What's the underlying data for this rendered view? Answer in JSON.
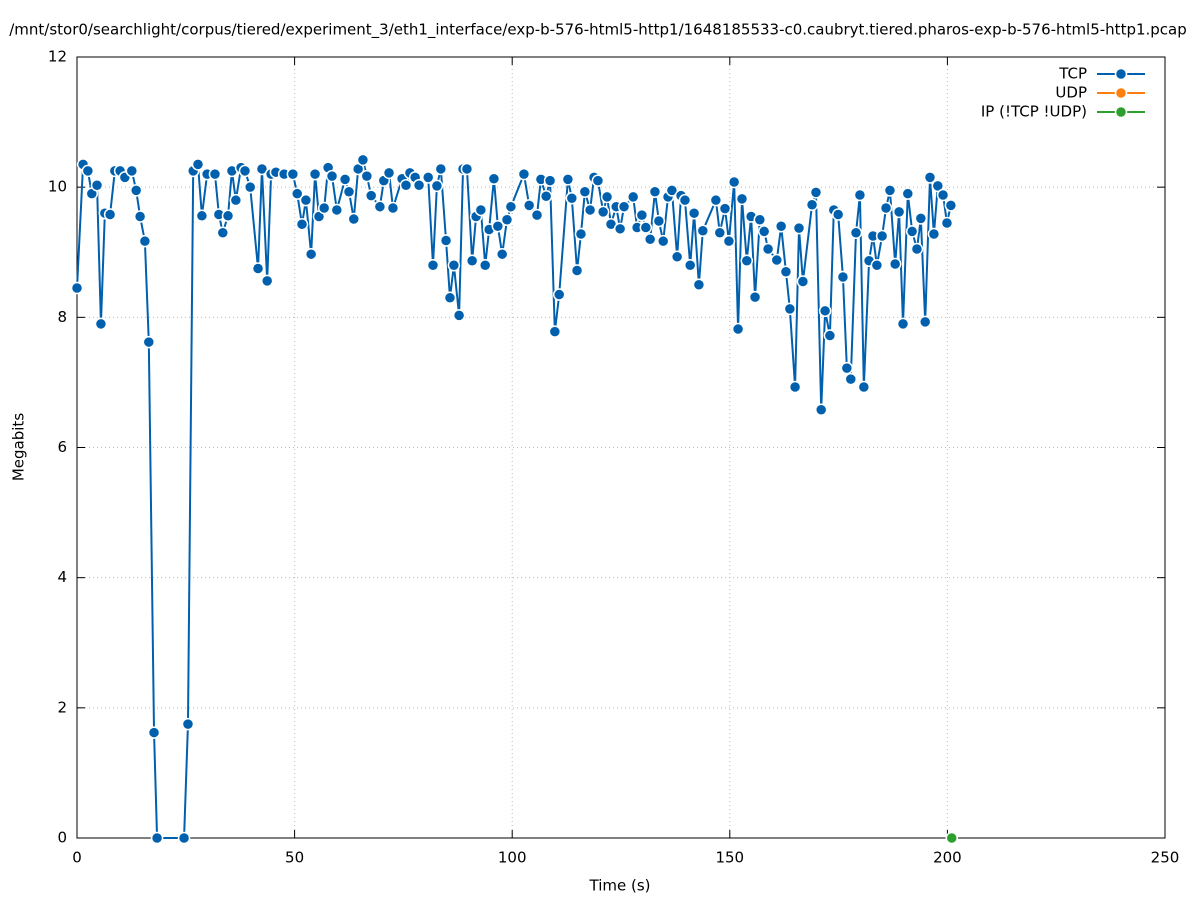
{
  "chart_data": {
    "type": "line",
    "title": "/mnt/stor0/searchlight/corpus/tiered/experiment_3/eth1_interface/exp-b-576-html5-http1/1648185533-c0.caubryt.tiered.pharos-exp-b-576-html5-http1.pcap",
    "xlabel": "Time (s)",
    "ylabel": "Megabits",
    "xlim": [
      0,
      250
    ],
    "xticks": [
      0,
      50,
      100,
      150,
      200,
      250
    ],
    "ylim": [
      0,
      12
    ],
    "yticks": [
      0,
      2,
      4,
      6,
      8,
      10,
      12
    ],
    "grid": true,
    "legend": "top-right",
    "series": [
      {
        "name": "TCP",
        "color": "#0060ad",
        "x": [
          0,
          1.4,
          2.5,
          3.4,
          4.6,
          5.5,
          6.4,
          7.6,
          8.7,
          9.9,
          11.0,
          12.6,
          13.6,
          14.5,
          15.6,
          16.5,
          17.7,
          18.4,
          24.6,
          25.5,
          26.7,
          27.8,
          28.7,
          29.9,
          31.7,
          32.6,
          33.5,
          34.7,
          35.6,
          36.5,
          37.7,
          38.6,
          39.8,
          41.6,
          42.5,
          43.7,
          44.6,
          45.7,
          47.6,
          49.6,
          50.6,
          51.7,
          52.6,
          53.8,
          54.7,
          55.6,
          56.8,
          57.7,
          58.6,
          59.7,
          61.6,
          62.5,
          63.6,
          64.6,
          65.7,
          66.6,
          67.6,
          69.6,
          70.5,
          71.7,
          72.6,
          74.7,
          75.6,
          76.5,
          77.7,
          78.6,
          80.7,
          81.8,
          82.7,
          83.6,
          84.8,
          85.7,
          86.6,
          87.8,
          88.7,
          89.6,
          90.8,
          91.7,
          92.8,
          93.8,
          94.7,
          95.8,
          96.7,
          97.7,
          98.8,
          99.7,
          102.7,
          103.9,
          105.7,
          106.6,
          107.8,
          108.7,
          109.8,
          110.8,
          112.8,
          113.7,
          114.9,
          115.8,
          116.7,
          117.9,
          118.8,
          119.7,
          120.9,
          121.8,
          122.7,
          123.9,
          124.8,
          125.7,
          127.8,
          128.7,
          129.8,
          130.7,
          131.7,
          132.8,
          133.7,
          134.7,
          135.8,
          136.7,
          137.9,
          138.8,
          139.7,
          140.9,
          141.8,
          142.9,
          143.8,
          146.8,
          147.7,
          148.9,
          149.8,
          151.0,
          151.9,
          152.8,
          153.9,
          154.9,
          155.8,
          156.9,
          157.9,
          158.8,
          160.8,
          161.8,
          162.9,
          163.8,
          165.0,
          165.9,
          166.8,
          168.9,
          169.8,
          171.0,
          171.9,
          173.0,
          173.9,
          174.9,
          176.0,
          176.9,
          177.8,
          179.0,
          179.9,
          180.8,
          182.0,
          182.9,
          183.8,
          185.0,
          185.9,
          186.8,
          188.0,
          188.9,
          189.8,
          190.9,
          191.9,
          193.0,
          193.9,
          194.9,
          196.0,
          196.9,
          197.8,
          199.0,
          199.9,
          200.8
        ],
        "values": [
          8.45,
          10.35,
          10.25,
          9.9,
          10.03,
          7.9,
          9.6,
          9.58,
          10.25,
          10.25,
          10.15,
          10.25,
          9.95,
          9.55,
          9.17,
          7.62,
          1.62,
          0,
          0,
          1.75,
          10.25,
          10.35,
          9.56,
          10.2,
          10.2,
          9.58,
          9.3,
          9.56,
          10.25,
          9.8,
          10.3,
          10.25,
          10.0,
          8.75,
          10.28,
          8.56,
          10.2,
          10.23,
          10.2,
          10.2,
          9.9,
          9.43,
          9.8,
          8.97,
          10.2,
          9.55,
          9.68,
          10.3,
          10.17,
          9.65,
          10.12,
          9.93,
          9.51,
          10.28,
          10.42,
          10.17,
          9.87,
          9.7,
          10.1,
          10.22,
          9.68,
          10.13,
          10.03,
          10.22,
          10.15,
          10.03,
          10.15,
          8.8,
          10.02,
          10.28,
          9.18,
          8.3,
          8.8,
          8.03,
          10.28,
          10.28,
          8.87,
          9.55,
          9.65,
          8.8,
          9.35,
          10.13,
          9.4,
          8.97,
          9.5,
          9.7,
          10.2,
          9.72,
          9.57,
          10.12,
          9.86,
          10.1,
          7.78,
          8.35,
          10.12,
          9.83,
          8.72,
          9.28,
          9.93,
          9.65,
          10.15,
          10.1,
          9.62,
          9.85,
          9.43,
          9.7,
          9.36,
          9.7,
          9.85,
          9.38,
          9.57,
          9.38,
          9.2,
          9.93,
          9.48,
          9.17,
          9.85,
          9.95,
          8.93,
          9.87,
          9.8,
          8.8,
          9.6,
          8.5,
          9.33,
          9.8,
          9.3,
          9.67,
          9.17,
          10.08,
          7.82,
          9.82,
          8.87,
          9.55,
          8.31,
          9.5,
          9.32,
          9.05,
          8.88,
          9.4,
          8.7,
          8.13,
          6.93,
          9.37,
          8.55,
          9.73,
          9.92,
          6.58,
          8.1,
          7.72,
          9.65,
          9.58,
          8.62,
          7.22,
          7.05,
          9.3,
          9.88,
          6.93,
          8.87,
          9.25,
          8.8,
          9.25,
          9.68,
          9.95,
          8.82,
          9.62,
          7.9,
          9.9,
          9.32,
          9.05,
          9.52,
          7.93,
          10.15,
          9.28,
          10.02,
          9.88,
          9.45,
          9.72
        ]
      },
      {
        "name": "UDP",
        "color": "#ff7f0e",
        "x": [],
        "values": []
      },
      {
        "name": "IP (!TCP  !UDP)",
        "color": "#2ca02c",
        "x": [
          201.0
        ],
        "values": [
          0
        ]
      }
    ]
  }
}
